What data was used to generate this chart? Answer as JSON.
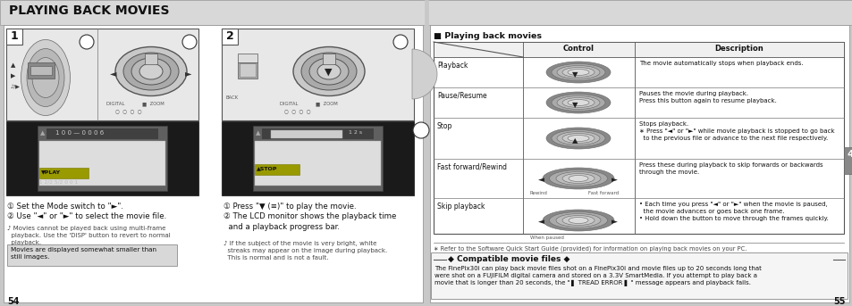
{
  "page_bg": "#c8c8c8",
  "white": "#ffffff",
  "black": "#000000",
  "light_gray": "#d8d8d8",
  "panel_bg": "#ebebeb",
  "title_text": "PLAYING BACK MOVIES",
  "section_header": "■ Playing back movies",
  "table_headers": [
    "Control",
    "Description"
  ],
  "table_rows": [
    {
      "label": "Playback",
      "desc": "The movie automatically stops when playback ends."
    },
    {
      "label": "Pause/Resume",
      "desc": "Pauses the movie during playback.\nPress this button again to resume playback."
    },
    {
      "label": "Stop",
      "desc": "Stops playback.\n∗ Press \"◄\" or \"►\" while movie playback is stopped to go back\n  to the previous file or advance to the next file respectively."
    },
    {
      "label": "Fast forward/Rewind",
      "desc": "Press these during playback to skip forwards or backwards\nthrough the movie.",
      "sublabel_left": "Rewind",
      "sublabel_right": "Fast forward"
    },
    {
      "label": "Skip playback",
      "desc": "• Each time you press \"◄\" or \"►\" when the movie is paused,\n  the movie advances or goes back one frame.\n• Hold down the button to move through the frames quickly.",
      "sublabel_left": "When paused"
    }
  ],
  "footnote": "∗ Refer to the Software Quick Start Guide (provided) for information on playing back movies on your PC.",
  "compat_title": "◆ Compatible movie files ◆",
  "compat_text": "The FinePix30i can play back movie files shot on a FinePix30i and movie files up to 20 seconds long that\nwere shot on a FUJIFILM digital camera and stored on a 3.3V SmartMedia. If you attempt to play back a\nmovie that is longer than 20 seconds, the \" ▌ TREAD ERROR ▌ \" message appears and playback fails.",
  "page_nums": [
    "54",
    "55"
  ],
  "step1_texts": [
    "① Set the Mode switch to \"►\".",
    "② Use \"◄\" or \"►\" to select the movie file."
  ],
  "step1_note": "♪ Movies cannot be played back using multi-frame\n  playback. Use the 'DISP' button to revert to normal\n  playback.",
  "step1_box": "Movies are displayed somewhat smaller than\nstill images.",
  "step2_texts": [
    "① Press \"▼ (≡)\" to play the movie.",
    "② The LCD monitor shows the playback time\n  and a playback progress bar."
  ],
  "step2_note": "♪ If the subject of the movie is very bright, white\n  streaks may appear on the image during playback.\n  This is normal and is not a fault.",
  "tab4_color": "#888888"
}
